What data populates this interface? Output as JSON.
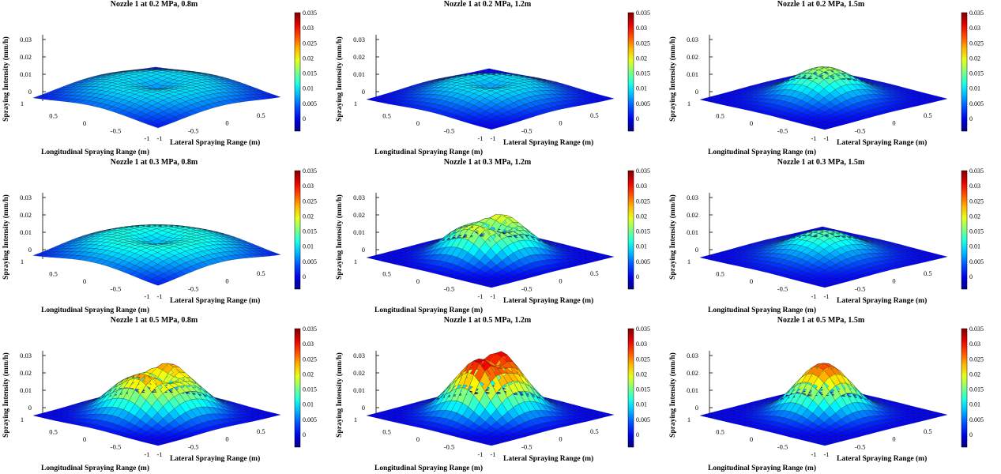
{
  "figure": {
    "colormap": "jet",
    "colors": {
      "low": "#00008f",
      "mid": "#7fff7f",
      "high": "#800000",
      "mesh_edge": "#1a1a1a"
    }
  },
  "chart_data": [
    {
      "type": "surface",
      "title": "Nozzle 1 at 0.2 MPa, 0.8m",
      "xlabel": "Lateral Spraying Range (m)",
      "ylabel": "Longitudinal Spraying Range (m)",
      "zlabel": "Spraying Intensity (mm/h)",
      "xlim": [
        -1,
        1
      ],
      "ylim": [
        -1,
        1
      ],
      "zlim": [
        -0.005,
        0.035
      ],
      "x_ticks": [
        "-1",
        "-0.5",
        "0",
        "0.5"
      ],
      "y_ticks": [
        "1",
        "0.5",
        "0",
        "-0.5",
        "-1"
      ],
      "z_ticks": [
        "0",
        "0.01",
        "0.02",
        "0.03"
      ],
      "colorbar_ticks": [
        "0",
        "0.005",
        "0.01",
        "0.015",
        "0.02",
        "0.025",
        "0.03",
        "0.035"
      ],
      "colorbar_range": [
        0,
        0.035
      ],
      "peak_intensity": 0.009,
      "distribution": "ring",
      "ring_radius": 0.45,
      "spread": 0.45,
      "twin_peaks": false
    },
    {
      "type": "surface",
      "title": "Nozzle 1 at 0.2 MPa, 1.2m",
      "xlabel": "Lateral Spraying Range (m)",
      "ylabel": "Longitudinal Spraying Range (m)",
      "zlabel": "Spraying Intensity (mm/h)",
      "xlim": [
        -1,
        1
      ],
      "ylim": [
        -1,
        1
      ],
      "zlim": [
        -0.005,
        0.035
      ],
      "x_ticks": [
        "-1",
        "-0.5",
        "0",
        "0.5"
      ],
      "y_ticks": [
        "1",
        "0.5",
        "0",
        "-0.5",
        "-1"
      ],
      "z_ticks": [
        "0",
        "0.01",
        "0.02",
        "0.03"
      ],
      "colorbar_ticks": [
        "0",
        "0.005",
        "0.01",
        "0.015",
        "0.02",
        "0.025",
        "0.03",
        "0.035"
      ],
      "colorbar_range": [
        0,
        0.035
      ],
      "peak_intensity": 0.009,
      "distribution": "ring",
      "ring_radius": 0.35,
      "spread": 0.35,
      "twin_peaks": false
    },
    {
      "type": "surface",
      "title": "Nozzle 1 at 0.2 MPa, 1.5m",
      "xlabel": "Lateral Spraying Range (m)",
      "ylabel": "Longitudinal Spraying Range (m)",
      "zlabel": "Spraying Intensity (mm/h)",
      "xlim": [
        -1,
        1
      ],
      "ylim": [
        -1,
        1
      ],
      "zlim": [
        -0.005,
        0.035
      ],
      "x_ticks": [
        "-1",
        "-0.5",
        "0",
        "0.5"
      ],
      "y_ticks": [
        "1",
        "0.5",
        "0",
        "-0.5",
        "-1"
      ],
      "z_ticks": [
        "0",
        "0.01",
        "0.02",
        "0.03"
      ],
      "colorbar_ticks": [
        "0",
        "0.005",
        "0.01",
        "0.015",
        "0.02",
        "0.025",
        "0.03",
        "0.035"
      ],
      "colorbar_range": [
        0,
        0.035
      ],
      "peak_intensity": 0.017,
      "distribution": "peak",
      "ring_radius": 0,
      "spread": 0.38,
      "twin_peaks": false
    },
    {
      "type": "surface",
      "title": "Nozzle 1 at 0.3 MPa, 0.8m",
      "xlabel": "Lateral Spraying Range (m)",
      "ylabel": "Longitudinal Spraying Range (m)",
      "zlabel": "Spraying Intensity (mm/h)",
      "xlim": [
        -1,
        1
      ],
      "ylim": [
        -1,
        1
      ],
      "zlim": [
        -0.005,
        0.035
      ],
      "x_ticks": [
        "-1",
        "-0.5",
        "0",
        "0.5"
      ],
      "y_ticks": [
        "1",
        "0.5",
        "0",
        "-0.5",
        "-1"
      ],
      "z_ticks": [
        "0",
        "0.01",
        "0.02",
        "0.03"
      ],
      "colorbar_ticks": [
        "0",
        "0.005",
        "0.01",
        "0.015",
        "0.02",
        "0.025",
        "0.03",
        "0.035"
      ],
      "colorbar_range": [
        0,
        0.035
      ],
      "peak_intensity": 0.011,
      "distribution": "ring",
      "ring_radius": 0.45,
      "spread": 0.45,
      "twin_peaks": false
    },
    {
      "type": "surface",
      "title": "Nozzle 1 at 0.3 MPa, 1.2m",
      "xlabel": "Lateral Spraying Range (m)",
      "ylabel": "Longitudinal Spraying Range (m)",
      "zlabel": "Spraying Intensity (mm/h)",
      "xlim": [
        -1,
        1
      ],
      "ylim": [
        -1,
        1
      ],
      "zlim": [
        -0.005,
        0.035
      ],
      "x_ticks": [
        "-1",
        "-0.5",
        "0",
        "0.5"
      ],
      "y_ticks": [
        "1",
        "0.5",
        "0",
        "-0.5",
        "-1"
      ],
      "z_ticks": [
        "0",
        "0.01",
        "0.02",
        "0.03"
      ],
      "colorbar_ticks": [
        "0",
        "0.005",
        "0.01",
        "0.015",
        "0.02",
        "0.025",
        "0.03",
        "0.035"
      ],
      "colorbar_range": [
        0,
        0.035
      ],
      "peak_intensity": 0.02,
      "distribution": "ring",
      "ring_radius": 0.3,
      "spread": 0.25,
      "twin_peaks": true
    },
    {
      "type": "surface",
      "title": "Nozzle 1 at 0.3 MPa, 1.5m",
      "xlabel": "Lateral Spraying Range (m)",
      "ylabel": "Longitudinal Spraying Range (m)",
      "zlabel": "Spraying Intensity (mm/h)",
      "xlim": [
        -1,
        1
      ],
      "ylim": [
        -1,
        1
      ],
      "zlim": [
        -0.005,
        0.035
      ],
      "x_ticks": [
        "-1",
        "-0.5",
        "0",
        "0.5"
      ],
      "y_ticks": [
        "1",
        "0.5",
        "0",
        "-0.5",
        "-1"
      ],
      "z_ticks": [
        "0",
        "0.01",
        "0.02",
        "0.03"
      ],
      "colorbar_ticks": [
        "0",
        "0.005",
        "0.01",
        "0.015",
        "0.02",
        "0.025",
        "0.03",
        "0.035"
      ],
      "colorbar_range": [
        0,
        0.035
      ],
      "peak_intensity": 0.014,
      "distribution": "peak",
      "ring_radius": 0,
      "spread": 0.4,
      "twin_peaks": false
    },
    {
      "type": "surface",
      "title": "Nozzle 1 at 0.5 MPa, 0.8m",
      "xlabel": "Lateral Spraying Range (m)",
      "ylabel": "Longitudinal Spraying Range (m)",
      "zlabel": "Spraying Intensity (mm/h)",
      "xlim": [
        -1,
        1
      ],
      "ylim": [
        -1,
        1
      ],
      "zlim": [
        -0.005,
        0.035
      ],
      "x_ticks": [
        "-1",
        "-0.5",
        "0",
        "0.5"
      ],
      "y_ticks": [
        "1",
        "0.5",
        "0",
        "-0.5",
        "-1"
      ],
      "z_ticks": [
        "0",
        "0.01",
        "0.02",
        "0.03"
      ],
      "colorbar_ticks": [
        "0",
        "0.005",
        "0.01",
        "0.015",
        "0.02",
        "0.025",
        "0.03",
        "0.035"
      ],
      "colorbar_range": [
        0,
        0.035
      ],
      "peak_intensity": 0.025,
      "distribution": "ring",
      "ring_radius": 0.3,
      "spread": 0.28,
      "twin_peaks": true
    },
    {
      "type": "surface",
      "title": "Nozzle 1 at 0.5 MPa, 1.2m",
      "xlabel": "Lateral Spraying Range (m)",
      "ylabel": "Longitudinal Spraying Range (m)",
      "zlabel": "Spraying Intensity (mm/h)",
      "xlim": [
        -1,
        1
      ],
      "ylim": [
        -1,
        1
      ],
      "zlim": [
        -0.005,
        0.035
      ],
      "x_ticks": [
        "-1",
        "-0.5",
        "0",
        "0.5"
      ],
      "y_ticks": [
        "1",
        "0.5",
        "0",
        "-0.5",
        "-1"
      ],
      "z_ticks": [
        "0",
        "0.01",
        "0.02",
        "0.03"
      ],
      "colorbar_ticks": [
        "0",
        "0.005",
        "0.01",
        "0.015",
        "0.02",
        "0.025",
        "0.03",
        "0.035"
      ],
      "colorbar_range": [
        0,
        0.035
      ],
      "peak_intensity": 0.033,
      "distribution": "ring",
      "ring_radius": 0.2,
      "spread": 0.28,
      "twin_peaks": true
    },
    {
      "type": "surface",
      "title": "Nozzle 1 at 0.5 MPa, 1.5m",
      "xlabel": "Lateral Spraying Range (m)",
      "ylabel": "Longitudinal Spraying Range (m)",
      "zlabel": "Spraying Intensity (mm/h)",
      "xlim": [
        -1,
        1
      ],
      "ylim": [
        -1,
        1
      ],
      "zlim": [
        -0.005,
        0.035
      ],
      "x_ticks": [
        "-1",
        "-0.5",
        "0",
        "0.5"
      ],
      "y_ticks": [
        "1",
        "0.5",
        "0",
        "-0.5",
        "-1"
      ],
      "z_ticks": [
        "0",
        "0.01",
        "0.02",
        "0.03"
      ],
      "colorbar_ticks": [
        "0",
        "0.005",
        "0.01",
        "0.015",
        "0.02",
        "0.025",
        "0.03",
        "0.035"
      ],
      "colorbar_range": [
        0,
        0.035
      ],
      "peak_intensity": 0.028,
      "distribution": "peak",
      "ring_radius": 0,
      "spread": 0.32,
      "twin_peaks": false
    }
  ]
}
